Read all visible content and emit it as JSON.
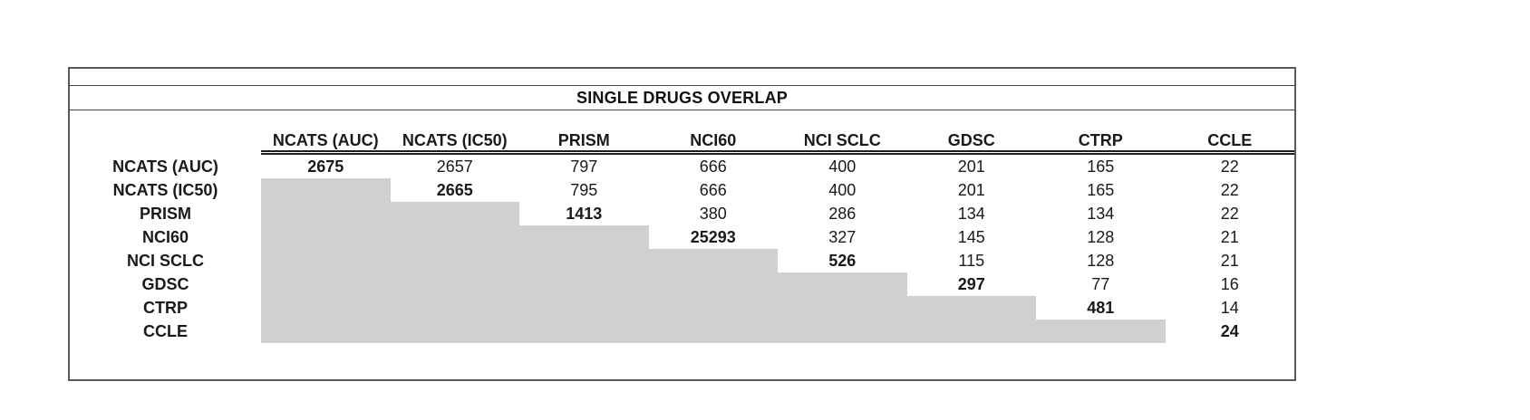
{
  "title": "SINGLE DRUGS OVERLAP",
  "table": {
    "column_headers": [
      "NCATS (AUC)",
      "NCATS (IC50)",
      "PRISM",
      "NCI60",
      "NCI SCLC",
      "GDSC",
      "CTRP",
      "CCLE"
    ],
    "rows": [
      {
        "label": "NCATS (AUC)",
        "values": [
          "2675",
          "2657",
          "797",
          "666",
          "400",
          "201",
          "165",
          "22"
        ]
      },
      {
        "label": "NCATS (IC50)",
        "values": [
          "",
          "2665",
          "795",
          "666",
          "400",
          "201",
          "165",
          "22"
        ]
      },
      {
        "label": "PRISM",
        "values": [
          "",
          "",
          "1413",
          "380",
          "286",
          "134",
          "134",
          "22"
        ]
      },
      {
        "label": "NCI60",
        "values": [
          "",
          "",
          "",
          "25293",
          "327",
          "145",
          "128",
          "21"
        ]
      },
      {
        "label": "NCI SCLC",
        "values": [
          "",
          "",
          "",
          "",
          "526",
          "115",
          "128",
          "21"
        ]
      },
      {
        "label": "GDSC",
        "values": [
          "",
          "",
          "",
          "",
          "",
          "297",
          "77",
          "16"
        ]
      },
      {
        "label": "CTRP",
        "values": [
          "",
          "",
          "",
          "",
          "",
          "",
          "481",
          "14"
        ]
      },
      {
        "label": "CCLE",
        "values": [
          "",
          "",
          "",
          "",
          "",
          "",
          "",
          "24"
        ]
      }
    ]
  },
  "chart_data": {
    "type": "table",
    "title": "SINGLE DRUGS OVERLAP",
    "columns": [
      "NCATS (AUC)",
      "NCATS (IC50)",
      "PRISM",
      "NCI60",
      "NCI SCLC",
      "GDSC",
      "CTRP",
      "CCLE"
    ],
    "rows": [
      {
        "label": "NCATS (AUC)",
        "values": [
          2675,
          2657,
          797,
          666,
          400,
          201,
          165,
          22
        ]
      },
      {
        "label": "NCATS (IC50)",
        "values": [
          null,
          2665,
          795,
          666,
          400,
          201,
          165,
          22
        ]
      },
      {
        "label": "PRISM",
        "values": [
          null,
          null,
          1413,
          380,
          286,
          134,
          134,
          22
        ]
      },
      {
        "label": "NCI60",
        "values": [
          null,
          null,
          null,
          25293,
          327,
          145,
          128,
          21
        ]
      },
      {
        "label": "NCI SCLC",
        "values": [
          null,
          null,
          null,
          null,
          526,
          115,
          128,
          21
        ]
      },
      {
        "label": "GDSC",
        "values": [
          null,
          null,
          null,
          null,
          null,
          297,
          77,
          16
        ]
      },
      {
        "label": "CTRP",
        "values": [
          null,
          null,
          null,
          null,
          null,
          null,
          481,
          14
        ]
      },
      {
        "label": "CCLE",
        "values": [
          null,
          null,
          null,
          null,
          null,
          null,
          null,
          24
        ]
      }
    ],
    "layout_hints": {
      "diagonal_bold": true,
      "lower_triangle_shaded": true,
      "shade_color": "#d1cfcf",
      "header_underline": "double"
    }
  },
  "colors": {
    "shaded_cell": "#d1cfcf",
    "border": "#595959",
    "text": "#1a1a1a",
    "background": "#ffffff"
  }
}
